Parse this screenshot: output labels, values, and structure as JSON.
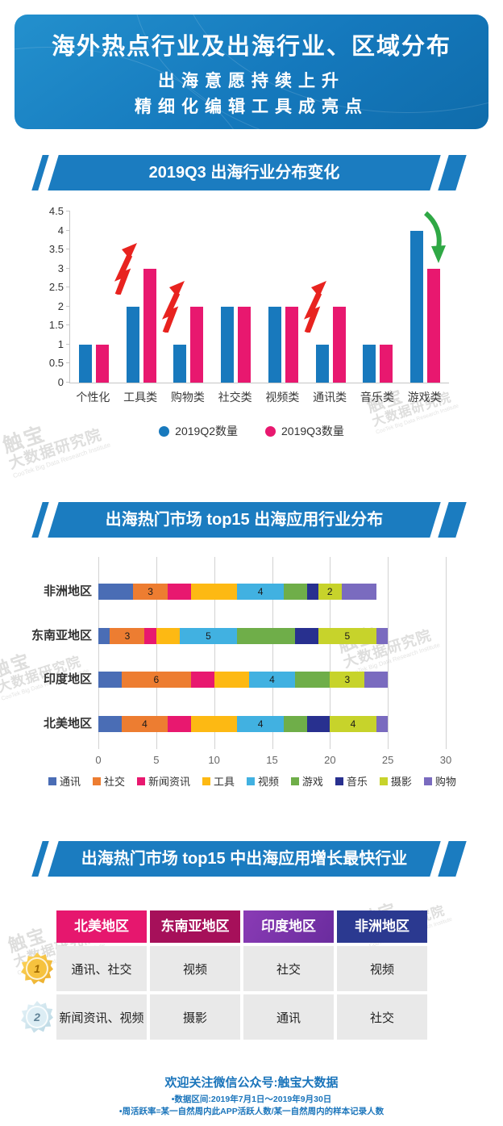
{
  "header": {
    "title": "海外热点行业及出海行业、区域分布",
    "subtitle_line1": "出海意愿持续上升",
    "subtitle_line2": "精细化编辑工具成亮点"
  },
  "sections": {
    "s1_banner": "2019Q3 出海行业分布变化",
    "s2_banner": "出海热门市场 top15 出海应用行业分布",
    "s3_banner": "出海热门市场 top15 中出海应用增长最快行业"
  },
  "chart_data": [
    {
      "type": "bar",
      "title": "2019Q3 出海行业分布变化",
      "categories": [
        "个性化",
        "工具类",
        "购物类",
        "社交类",
        "视频类",
        "通讯类",
        "音乐类",
        "游戏类"
      ],
      "series": [
        {
          "name": "2019Q2数量",
          "color": "#1879bd",
          "values": [
            1,
            2,
            1,
            2,
            2,
            1,
            1,
            4
          ]
        },
        {
          "name": "2019Q3数量",
          "color": "#e8186f",
          "values": [
            1,
            3,
            2,
            2,
            2,
            2,
            1,
            3
          ]
        }
      ],
      "ylim": [
        0,
        4.5
      ],
      "yticks": [
        0,
        0.5,
        1,
        1.5,
        2,
        2.5,
        3,
        3.5,
        4,
        4.5
      ],
      "grid": false,
      "legend_position": "bottom",
      "annotations": [
        {
          "category": "工具类",
          "type": "up-lightning-arrow",
          "color": "#e8231f"
        },
        {
          "category": "购物类",
          "type": "up-lightning-arrow",
          "color": "#e8231f"
        },
        {
          "category": "通讯类",
          "type": "up-lightning-arrow",
          "color": "#e8231f"
        },
        {
          "category": "游戏类",
          "type": "down-curved-arrow",
          "color": "#2fa845"
        }
      ]
    },
    {
      "type": "stacked-bar-horizontal",
      "title": "出海热门市场 top15 出海应用行业分布",
      "categories": [
        "非洲地区",
        "东南亚地区",
        "印度地区",
        "北美地区"
      ],
      "series": [
        {
          "name": "通讯",
          "color": "#4a6db5",
          "values": [
            3,
            1,
            2,
            2
          ]
        },
        {
          "name": "社交",
          "color": "#ed7d31",
          "values": [
            3,
            3,
            6,
            4
          ]
        },
        {
          "name": "新闻资讯",
          "color": "#e8186f",
          "values": [
            2,
            1,
            2,
            2
          ]
        },
        {
          "name": "工具",
          "color": "#fdb913",
          "values": [
            4,
            2,
            3,
            4
          ]
        },
        {
          "name": "视频",
          "color": "#41b1e1",
          "values": [
            4,
            5,
            4,
            4
          ]
        },
        {
          "name": "游戏",
          "color": "#6fae49",
          "values": [
            2,
            5,
            3,
            2
          ]
        },
        {
          "name": "音乐",
          "color": "#28308f",
          "values": [
            1,
            2,
            0,
            2
          ]
        },
        {
          "name": "摄影",
          "color": "#c7d32b",
          "values": [
            2,
            5,
            3,
            4
          ]
        },
        {
          "name": "购物",
          "color": "#7a6bbf",
          "values": [
            3,
            1,
            2,
            1
          ]
        }
      ],
      "data_labels_on": [
        "社交",
        "视频",
        "摄影"
      ],
      "xticks": [
        0,
        5,
        10,
        15,
        20,
        25,
        30
      ],
      "xlim": [
        0,
        30
      ],
      "grid": true,
      "legend_position": "bottom"
    },
    {
      "type": "table",
      "title": "出海热门市场 top15 中出海应用增长最快行业",
      "headers": [
        "北美地区",
        "东南亚地区",
        "印度地区",
        "非洲地区"
      ],
      "header_colors": [
        "#e6176e",
        "#a6105a",
        "#7030a0",
        "#2b3990"
      ],
      "rank_labels": [
        "1",
        "2"
      ],
      "rows": [
        [
          "通讯、社交",
          "视频",
          "社交",
          "视频"
        ],
        [
          "新闻资讯、视频",
          "摄影",
          "通讯",
          "社交"
        ]
      ]
    }
  ],
  "table": {
    "headers": [
      "北美地区",
      "东南亚地区",
      "印度地区",
      "非洲地区"
    ],
    "medal1": "1",
    "medal2": "2",
    "rows": [
      {
        "cells": [
          "通讯、社交",
          "视频",
          "社交",
          "视频"
        ]
      },
      {
        "cells": [
          "新闻资讯、视频",
          "摄影",
          "通讯",
          "社交"
        ]
      }
    ]
  },
  "footer": {
    "title": "欢迎关注微信公众号:触宝大数据",
    "note1": "•数据区间:2019年7月1日～2019年9月30日",
    "note2": "•周活跃率=某一自然周内此APP活跃人数/某一自然周内的样本记录人数"
  },
  "watermark": {
    "line1": "触宝",
    "line2": "大数据研究院",
    "line3": "CooTek Big Data Research Institute"
  },
  "colors": {
    "primary_blue": "#1b7cc0",
    "q2_bar": "#1879bd",
    "q3_bar": "#e8186f",
    "footer_text": "#1b75bb"
  }
}
